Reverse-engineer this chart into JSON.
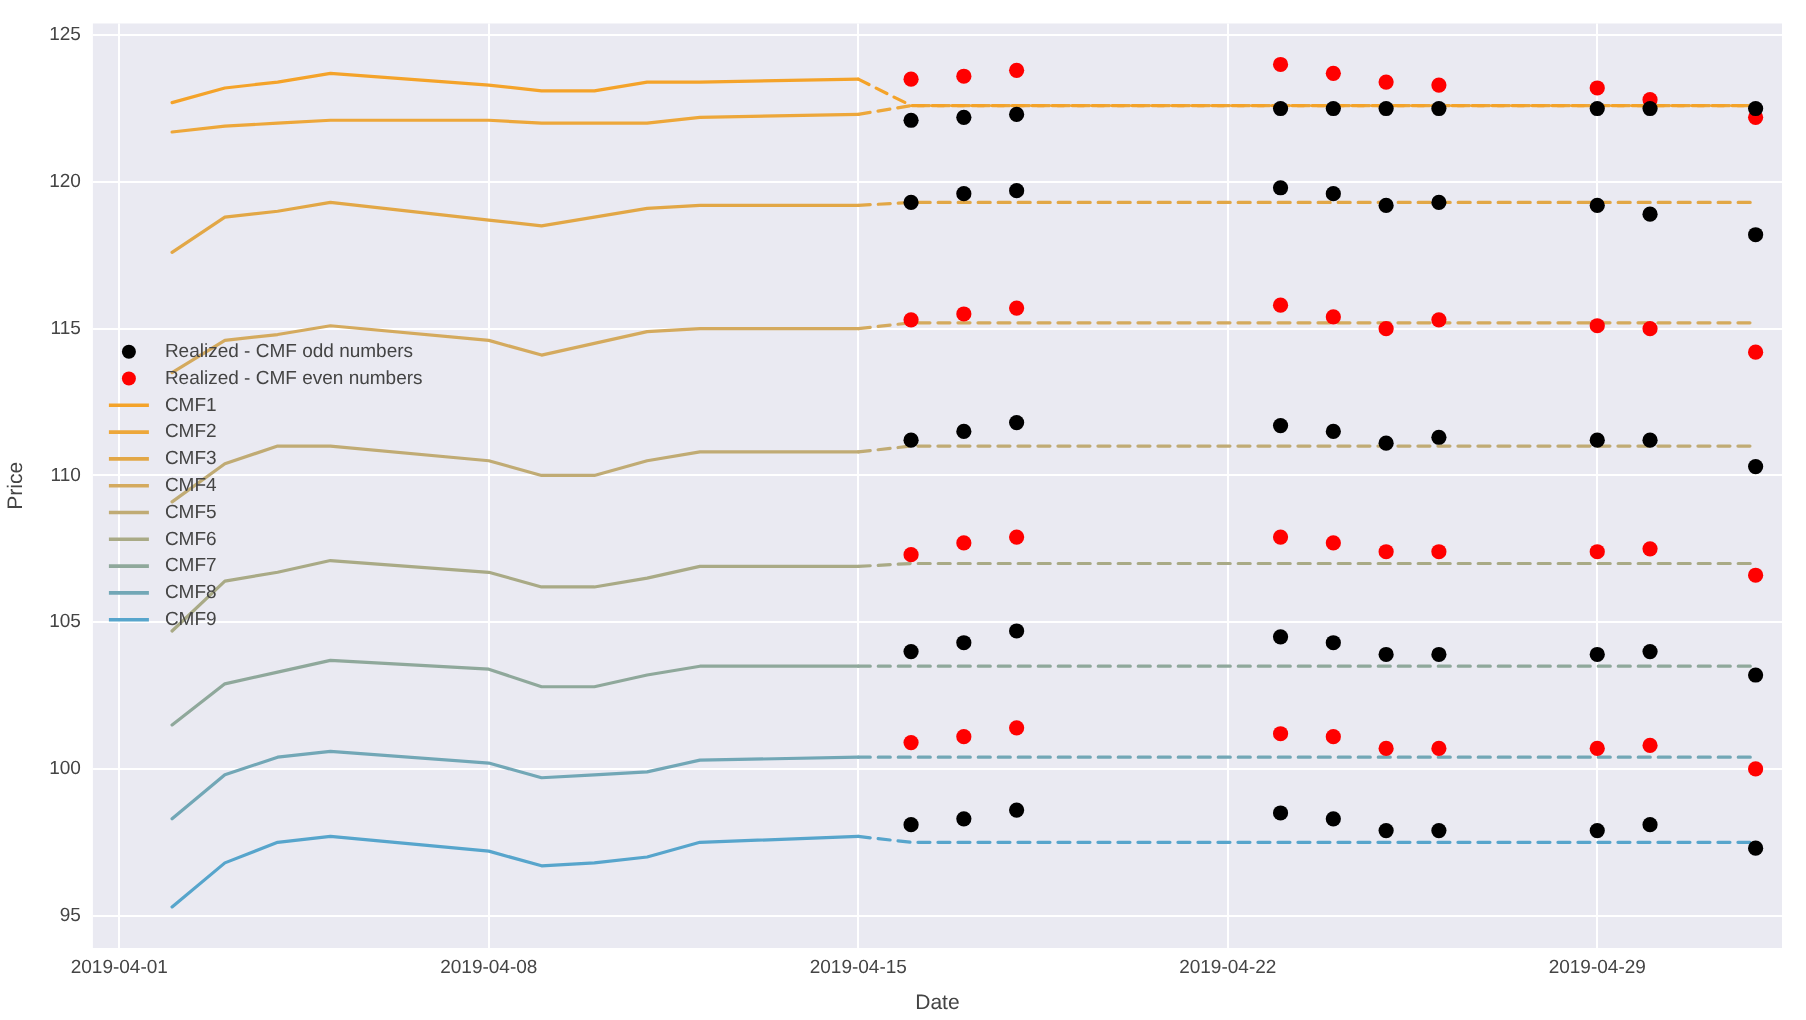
{
  "chart_data": {
    "type": "line",
    "xlabel": "Date",
    "ylabel": "Price",
    "xlim": [
      "2019-03-31T12:00",
      "2019-05-02T12:00"
    ],
    "xticks": [
      "2019-04-01",
      "2019-04-08",
      "2019-04-15",
      "2019-04-22",
      "2019-04-29"
    ],
    "ylim": [
      93.9,
      125.4
    ],
    "yticks": [
      95,
      100,
      105,
      110,
      115,
      120,
      125
    ],
    "grid": true,
    "legend": "left",
    "series": [
      {
        "name": "Realized - CMF odd numbers",
        "type": "scatter",
        "marker": "circle",
        "color": "#000000",
        "x": [
          "2019-04-16",
          "2019-04-17",
          "2019-04-18",
          "2019-04-23",
          "2019-04-24",
          "2019-04-25",
          "2019-04-26",
          "2019-04-29",
          "2019-04-30",
          "2019-05-02",
          "2019-04-16",
          "2019-04-17",
          "2019-04-18",
          "2019-04-23",
          "2019-04-24",
          "2019-04-25",
          "2019-04-26",
          "2019-04-29",
          "2019-04-30",
          "2019-05-02",
          "2019-04-16",
          "2019-04-17",
          "2019-04-18",
          "2019-04-23",
          "2019-04-24",
          "2019-04-25",
          "2019-04-26",
          "2019-04-29",
          "2019-04-30",
          "2019-05-02",
          "2019-04-16",
          "2019-04-17",
          "2019-04-18",
          "2019-04-23",
          "2019-04-24",
          "2019-04-25",
          "2019-04-26",
          "2019-04-29",
          "2019-04-30",
          "2019-05-02",
          "2019-04-16",
          "2019-04-17",
          "2019-04-18",
          "2019-04-23",
          "2019-04-24",
          "2019-04-25",
          "2019-04-26",
          "2019-04-29",
          "2019-04-30",
          "2019-05-02"
        ],
        "values": [
          122.1,
          122.2,
          122.3,
          122.5,
          122.5,
          122.5,
          122.5,
          122.5,
          122.5,
          122.5,
          119.3,
          119.6,
          119.7,
          119.8,
          119.6,
          119.2,
          119.3,
          119.2,
          118.9,
          118.2,
          111.2,
          111.5,
          111.8,
          111.7,
          111.5,
          111.1,
          111.3,
          111.2,
          111.2,
          110.3,
          104.0,
          104.3,
          104.7,
          104.5,
          104.3,
          103.9,
          103.9,
          103.9,
          104.0,
          103.2,
          98.1,
          98.3,
          98.6,
          98.5,
          98.3,
          97.9,
          97.9,
          97.9,
          98.1,
          97.3
        ]
      },
      {
        "name": "Realized - CMF even numbers",
        "type": "scatter",
        "marker": "circle",
        "color": "#ff0000",
        "x": [
          "2019-04-16",
          "2019-04-17",
          "2019-04-18",
          "2019-04-23",
          "2019-04-24",
          "2019-04-25",
          "2019-04-26",
          "2019-04-29",
          "2019-04-30",
          "2019-05-02",
          "2019-04-16",
          "2019-04-17",
          "2019-04-18",
          "2019-04-23",
          "2019-04-24",
          "2019-04-25",
          "2019-04-26",
          "2019-04-29",
          "2019-04-30",
          "2019-05-02",
          "2019-04-16",
          "2019-04-17",
          "2019-04-18",
          "2019-04-23",
          "2019-04-24",
          "2019-04-25",
          "2019-04-26",
          "2019-04-29",
          "2019-04-30",
          "2019-05-02",
          "2019-04-16",
          "2019-04-17",
          "2019-04-18",
          "2019-04-23",
          "2019-04-24",
          "2019-04-25",
          "2019-04-26",
          "2019-04-29",
          "2019-04-30",
          "2019-05-02"
        ],
        "values": [
          123.5,
          123.6,
          123.8,
          124.0,
          123.7,
          123.4,
          123.3,
          123.2,
          122.8,
          122.2,
          115.3,
          115.5,
          115.7,
          115.8,
          115.4,
          115.0,
          115.3,
          115.1,
          115.0,
          114.2,
          107.3,
          107.7,
          107.9,
          107.9,
          107.7,
          107.4,
          107.4,
          107.4,
          107.5,
          106.6,
          100.9,
          101.1,
          101.4,
          101.2,
          101.1,
          100.7,
          100.7,
          100.7,
          100.8,
          100.0
        ]
      },
      {
        "name": "CMF1",
        "color": "#f4a32a",
        "x": [
          "2019-04-02",
          "2019-04-03",
          "2019-04-04",
          "2019-04-05",
          "2019-04-08",
          "2019-04-09",
          "2019-04-10",
          "2019-04-11",
          "2019-04-12",
          "2019-04-15"
        ],
        "values": [
          122.7,
          123.2,
          123.4,
          123.7,
          123.3,
          123.1,
          123.1,
          123.4,
          123.4,
          123.5
        ]
      },
      {
        "name": "CMF2",
        "color": "#eda73a",
        "x": [
          "2019-04-02",
          "2019-04-03",
          "2019-04-04",
          "2019-04-05",
          "2019-04-08",
          "2019-04-09",
          "2019-04-10",
          "2019-04-11",
          "2019-04-12",
          "2019-04-15"
        ],
        "values": [
          121.7,
          121.9,
          122.0,
          122.1,
          122.1,
          122.0,
          122.0,
          122.0,
          122.2,
          122.3
        ]
      },
      {
        "name": "CMF3",
        "color": "#e2a746",
        "x": [
          "2019-04-02",
          "2019-04-03",
          "2019-04-04",
          "2019-04-05",
          "2019-04-08",
          "2019-04-09",
          "2019-04-10",
          "2019-04-11",
          "2019-04-12",
          "2019-04-15"
        ],
        "values": [
          117.6,
          118.8,
          119.0,
          119.3,
          118.7,
          118.5,
          118.8,
          119.1,
          119.2,
          119.2
        ]
      },
      {
        "name": "CMF4",
        "color": "#d4aa5e",
        "x": [
          "2019-04-02",
          "2019-04-03",
          "2019-04-04",
          "2019-04-05",
          "2019-04-08",
          "2019-04-09",
          "2019-04-10",
          "2019-04-11",
          "2019-04-12",
          "2019-04-15"
        ],
        "values": [
          113.5,
          114.6,
          114.8,
          115.1,
          114.6,
          114.1,
          114.5,
          114.9,
          115.0,
          115.0
        ]
      },
      {
        "name": "CMF5",
        "color": "#c0ab74",
        "x": [
          "2019-04-02",
          "2019-04-03",
          "2019-04-04",
          "2019-04-05",
          "2019-04-08",
          "2019-04-09",
          "2019-04-10",
          "2019-04-11",
          "2019-04-12",
          "2019-04-15"
        ],
        "values": [
          109.1,
          110.4,
          111.0,
          111.0,
          110.5,
          110.0,
          110.0,
          110.5,
          110.8,
          110.8
        ]
      },
      {
        "name": "CMF6",
        "color": "#a9aa86",
        "x": [
          "2019-04-02",
          "2019-04-03",
          "2019-04-04",
          "2019-04-05",
          "2019-04-08",
          "2019-04-09",
          "2019-04-10",
          "2019-04-11",
          "2019-04-12",
          "2019-04-15"
        ],
        "values": [
          104.7,
          106.4,
          106.7,
          107.1,
          106.7,
          106.2,
          106.2,
          106.5,
          106.9,
          106.9
        ]
      },
      {
        "name": "CMF7",
        "color": "#8fa89b",
        "x": [
          "2019-04-02",
          "2019-04-03",
          "2019-04-04",
          "2019-04-05",
          "2019-04-08",
          "2019-04-09",
          "2019-04-10",
          "2019-04-11",
          "2019-04-12",
          "2019-04-15"
        ],
        "values": [
          101.5,
          102.9,
          103.3,
          103.7,
          103.4,
          102.8,
          102.8,
          103.2,
          103.5,
          103.5
        ]
      },
      {
        "name": "CMF8",
        "color": "#72a7b6",
        "x": [
          "2019-04-02",
          "2019-04-03",
          "2019-04-04",
          "2019-04-05",
          "2019-04-08",
          "2019-04-09",
          "2019-04-10",
          "2019-04-11",
          "2019-04-12",
          "2019-04-15"
        ],
        "values": [
          98.3,
          99.8,
          100.4,
          100.6,
          100.2,
          99.7,
          99.8,
          99.9,
          100.3,
          100.4
        ]
      },
      {
        "name": "CMF9",
        "color": "#57a5cc",
        "x": [
          "2019-04-02",
          "2019-04-03",
          "2019-04-04",
          "2019-04-05",
          "2019-04-08",
          "2019-04-09",
          "2019-04-10",
          "2019-04-11",
          "2019-04-12",
          "2019-04-15"
        ],
        "values": [
          95.3,
          96.8,
          97.5,
          97.7,
          97.2,
          96.7,
          96.8,
          97.0,
          97.5,
          97.7
        ]
      },
      {
        "color": "#f4a32a",
        "line_style": "dashed",
        "x": [
          "2019-04-15",
          "2019-04-16",
          "2019-05-02"
        ],
        "values": [
          123.5,
          122.6,
          122.6
        ]
      },
      {
        "color": "#eda73a",
        "line_style": "dashed",
        "x": [
          "2019-04-15",
          "2019-04-16",
          "2019-05-02"
        ],
        "values": [
          122.3,
          122.6,
          122.6
        ]
      },
      {
        "color": "#e2a746",
        "line_style": "dashed",
        "x": [
          "2019-04-15",
          "2019-04-16",
          "2019-05-02"
        ],
        "values": [
          119.2,
          119.3,
          119.3
        ]
      },
      {
        "color": "#d4aa5e",
        "line_style": "dashed",
        "x": [
          "2019-04-15",
          "2019-04-16",
          "2019-05-02"
        ],
        "values": [
          115.0,
          115.2,
          115.2
        ]
      },
      {
        "color": "#c0ab74",
        "line_style": "dashed",
        "x": [
          "2019-04-15",
          "2019-04-16",
          "2019-05-02"
        ],
        "values": [
          110.8,
          111.0,
          111.0
        ]
      },
      {
        "color": "#a9aa86",
        "line_style": "dashed",
        "x": [
          "2019-04-15",
          "2019-04-16",
          "2019-05-02"
        ],
        "values": [
          106.9,
          107.0,
          107.0
        ]
      },
      {
        "color": "#8fa89b",
        "line_style": "dashed",
        "x": [
          "2019-04-15",
          "2019-04-16",
          "2019-05-02"
        ],
        "values": [
          103.5,
          103.5,
          103.5
        ]
      },
      {
        "color": "#72a7b6",
        "line_style": "dashed",
        "x": [
          "2019-04-15",
          "2019-04-16",
          "2019-05-02"
        ],
        "values": [
          100.4,
          100.4,
          100.4
        ]
      },
      {
        "color": "#57a5cc",
        "line_style": "dashed",
        "x": [
          "2019-04-15",
          "2019-04-16",
          "2019-05-02"
        ],
        "values": [
          97.7,
          97.5,
          97.5
        ]
      }
    ]
  }
}
